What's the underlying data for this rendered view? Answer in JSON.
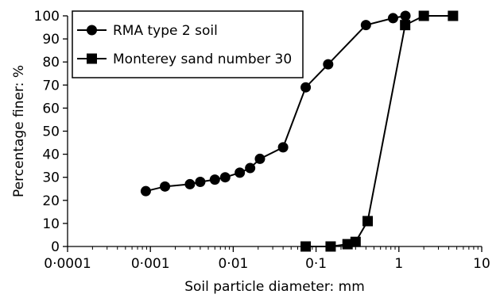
{
  "chart_data": {
    "type": "line",
    "xscale": "log",
    "xlabel": "Soil particle diameter: mm",
    "ylabel": "Percentage finer: %",
    "xlim": [
      0.0001,
      10
    ],
    "ylim": [
      0,
      100
    ],
    "xticks": [
      {
        "value": 0.0001,
        "label": "0·0001"
      },
      {
        "value": 0.001,
        "label": "0·001"
      },
      {
        "value": 0.01,
        "label": "0·01"
      },
      {
        "value": 0.1,
        "label": "0·1"
      },
      {
        "value": 1,
        "label": "1"
      },
      {
        "value": 10,
        "label": "10"
      }
    ],
    "yticks": [
      {
        "value": 0,
        "label": "0"
      },
      {
        "value": 10,
        "label": "10"
      },
      {
        "value": 20,
        "label": "20"
      },
      {
        "value": 30,
        "label": "30"
      },
      {
        "value": 40,
        "label": "40"
      },
      {
        "value": 50,
        "label": "50"
      },
      {
        "value": 60,
        "label": "60"
      },
      {
        "value": 70,
        "label": "70"
      },
      {
        "value": 80,
        "label": "80"
      },
      {
        "value": 90,
        "label": "90"
      },
      {
        "value": 100,
        "label": "100"
      }
    ],
    "grid": false,
    "legend_position": "top-left",
    "series": [
      {
        "name": "RMA type 2 soil",
        "marker": "circle",
        "color": "#000000",
        "x": [
          0.00088,
          0.0015,
          0.003,
          0.004,
          0.006,
          0.008,
          0.012,
          0.016,
          0.021,
          0.04,
          0.075,
          0.14,
          0.4,
          0.85,
          1.2
        ],
        "y": [
          24,
          26,
          27,
          28,
          29,
          30,
          32,
          34,
          38,
          43,
          69,
          79,
          96,
          99,
          100
        ]
      },
      {
        "name": "Monterey sand number 30",
        "marker": "square",
        "color": "#000000",
        "x": [
          0.075,
          0.15,
          0.24,
          0.3,
          0.42,
          1.19,
          2.0,
          4.5
        ],
        "y": [
          0,
          0,
          1,
          2,
          11,
          96,
          100,
          100
        ]
      }
    ]
  }
}
